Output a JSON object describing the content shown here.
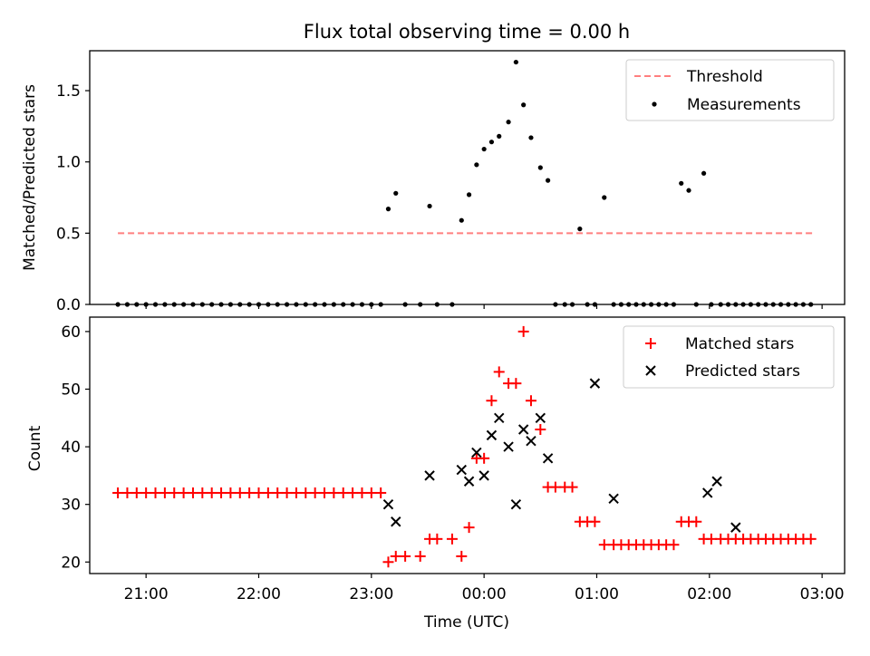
{
  "chart_data": [
    {
      "type": "scatter",
      "title": "Flux total observing time = 0.00 h",
      "xlabel": "",
      "ylabel": "Matched/Predicted stars",
      "ylim": [
        0,
        1.78
      ],
      "xlim": [
        "20:30",
        "03:12"
      ],
      "yticks": [
        {
          "v": 0.0,
          "label": "0.0"
        },
        {
          "v": 0.5,
          "label": "0.5"
        },
        {
          "v": 1.0,
          "label": "1.0"
        },
        {
          "v": 1.5,
          "label": "1.5"
        }
      ],
      "xticks": [
        "21:00",
        "22:00",
        "23:00",
        "00:00",
        "01:00",
        "02:00",
        "03:00"
      ],
      "show_xtick_labels": false,
      "legend": {
        "placement": "top-right",
        "entries": [
          "Threshold",
          "Measurements"
        ]
      },
      "threshold": {
        "name": "Threshold",
        "value": 0.5,
        "x_range": [
          "20:45",
          "02:55"
        ],
        "color": "#ff7f7f",
        "style": "dashed"
      },
      "series": [
        {
          "name": "Measurements",
          "color": "#000000",
          "x": [
            "20:45",
            "20:50",
            "20:55",
            "21:00",
            "21:05",
            "21:10",
            "21:15",
            "21:20",
            "21:25",
            "21:30",
            "21:35",
            "21:40",
            "21:45",
            "21:50",
            "21:55",
            "22:00",
            "22:05",
            "22:10",
            "22:15",
            "22:20",
            "22:25",
            "22:30",
            "22:35",
            "22:40",
            "22:45",
            "22:50",
            "22:55",
            "23:00",
            "23:05",
            "23:09",
            "23:13",
            "23:18",
            "23:26",
            "23:31",
            "23:35",
            "23:43",
            "23:48",
            "23:52",
            "23:56",
            "00:00",
            "00:04",
            "00:08",
            "00:13",
            "00:17",
            "00:21",
            "00:25",
            "00:30",
            "00:34",
            "00:38",
            "00:43",
            "00:47",
            "00:51",
            "00:55",
            "00:59",
            "01:04",
            "01:09",
            "01:13",
            "01:17",
            "01:21",
            "01:25",
            "01:29",
            "01:33",
            "01:37",
            "01:41",
            "01:45",
            "01:49",
            "01:53",
            "01:57",
            "02:01",
            "02:06",
            "02:10",
            "02:14",
            "02:18",
            "02:22",
            "02:26",
            "02:30",
            "02:34",
            "02:38",
            "02:42",
            "02:46",
            "02:50",
            "02:54"
          ],
          "y": [
            0,
            0,
            0,
            0,
            0,
            0,
            0,
            0,
            0,
            0,
            0,
            0,
            0,
            0,
            0,
            0,
            0,
            0,
            0,
            0,
            0,
            0,
            0,
            0,
            0,
            0,
            0,
            0,
            0,
            0.67,
            0.78,
            0,
            0,
            0.69,
            0,
            0,
            0.59,
            0.77,
            0.98,
            1.09,
            1.14,
            1.18,
            1.28,
            1.7,
            1.4,
            1.17,
            0.96,
            0.87,
            0,
            0,
            0,
            0.53,
            0,
            0,
            0.75,
            0,
            0,
            0,
            0,
            0,
            0,
            0,
            0,
            0,
            0.85,
            0.8,
            0,
            0.92,
            0,
            0,
            0,
            0,
            0,
            0,
            0,
            0,
            0,
            0,
            0,
            0,
            0,
            0
          ]
        }
      ]
    },
    {
      "type": "scatter",
      "title": "",
      "xlabel": "Time (UTC)",
      "ylabel": "Count",
      "ylim": [
        18,
        62.5
      ],
      "xlim": [
        "20:30",
        "03:12"
      ],
      "yticks": [
        {
          "v": 20,
          "label": "20"
        },
        {
          "v": 30,
          "label": "30"
        },
        {
          "v": 40,
          "label": "40"
        },
        {
          "v": 50,
          "label": "50"
        },
        {
          "v": 60,
          "label": "60"
        }
      ],
      "xticks": [
        "21:00",
        "22:00",
        "23:00",
        "00:00",
        "01:00",
        "02:00",
        "03:00"
      ],
      "show_xtick_labels": true,
      "legend": {
        "placement": "top-right",
        "entries": [
          "Matched stars",
          "Predicted stars"
        ]
      },
      "series": [
        {
          "name": "Matched stars",
          "marker": "plus",
          "color": "#ff0000",
          "x": [
            "20:45",
            "20:50",
            "20:55",
            "21:00",
            "21:05",
            "21:10",
            "21:15",
            "21:20",
            "21:25",
            "21:30",
            "21:35",
            "21:40",
            "21:45",
            "21:50",
            "21:55",
            "22:00",
            "22:05",
            "22:10",
            "22:15",
            "22:20",
            "22:25",
            "22:30",
            "22:35",
            "22:40",
            "22:45",
            "22:50",
            "22:55",
            "23:00",
            "23:05",
            "23:09",
            "23:13",
            "23:18",
            "23:26",
            "23:31",
            "23:35",
            "23:43",
            "23:48",
            "23:52",
            "23:56",
            "00:00",
            "00:04",
            "00:08",
            "00:13",
            "00:17",
            "00:21",
            "00:25",
            "00:30",
            "00:34",
            "00:38",
            "00:43",
            "00:47",
            "00:51",
            "00:55",
            "00:59",
            "01:04",
            "01:09",
            "01:13",
            "01:17",
            "01:21",
            "01:25",
            "01:29",
            "01:33",
            "01:37",
            "01:41",
            "01:45",
            "01:49",
            "01:53",
            "01:57",
            "02:01",
            "02:06",
            "02:10",
            "02:14",
            "02:18",
            "02:22",
            "02:26",
            "02:30",
            "02:34",
            "02:38",
            "02:42",
            "02:46",
            "02:50",
            "02:54"
          ],
          "y": [
            32,
            32,
            32,
            32,
            32,
            32,
            32,
            32,
            32,
            32,
            32,
            32,
            32,
            32,
            32,
            32,
            32,
            32,
            32,
            32,
            32,
            32,
            32,
            32,
            32,
            32,
            32,
            32,
            32,
            20,
            21,
            21,
            21,
            24,
            24,
            24,
            21,
            26,
            38,
            38,
            48,
            53,
            51,
            51,
            60,
            48,
            43,
            33,
            33,
            33,
            33,
            27,
            27,
            27,
            23,
            23,
            23,
            23,
            23,
            23,
            23,
            23,
            23,
            23,
            27,
            27,
            27,
            24,
            24,
            24,
            24,
            24,
            24,
            24,
            24,
            24,
            24,
            24,
            24,
            24,
            24,
            24
          ]
        },
        {
          "name": "Predicted stars",
          "marker": "x",
          "color": "#000000",
          "x": [
            "23:09",
            "23:13",
            "23:31",
            "23:48",
            "23:52",
            "23:56",
            "00:00",
            "00:04",
            "00:08",
            "00:13",
            "00:17",
            "00:21",
            "00:25",
            "00:30",
            "00:34",
            "00:59",
            "01:09",
            "01:59",
            "02:04",
            "02:14"
          ],
          "y": [
            30,
            27,
            35,
            36,
            34,
            39,
            35,
            42,
            45,
            40,
            30,
            43,
            41,
            45,
            38,
            51,
            31,
            32,
            34,
            26
          ]
        }
      ]
    }
  ]
}
